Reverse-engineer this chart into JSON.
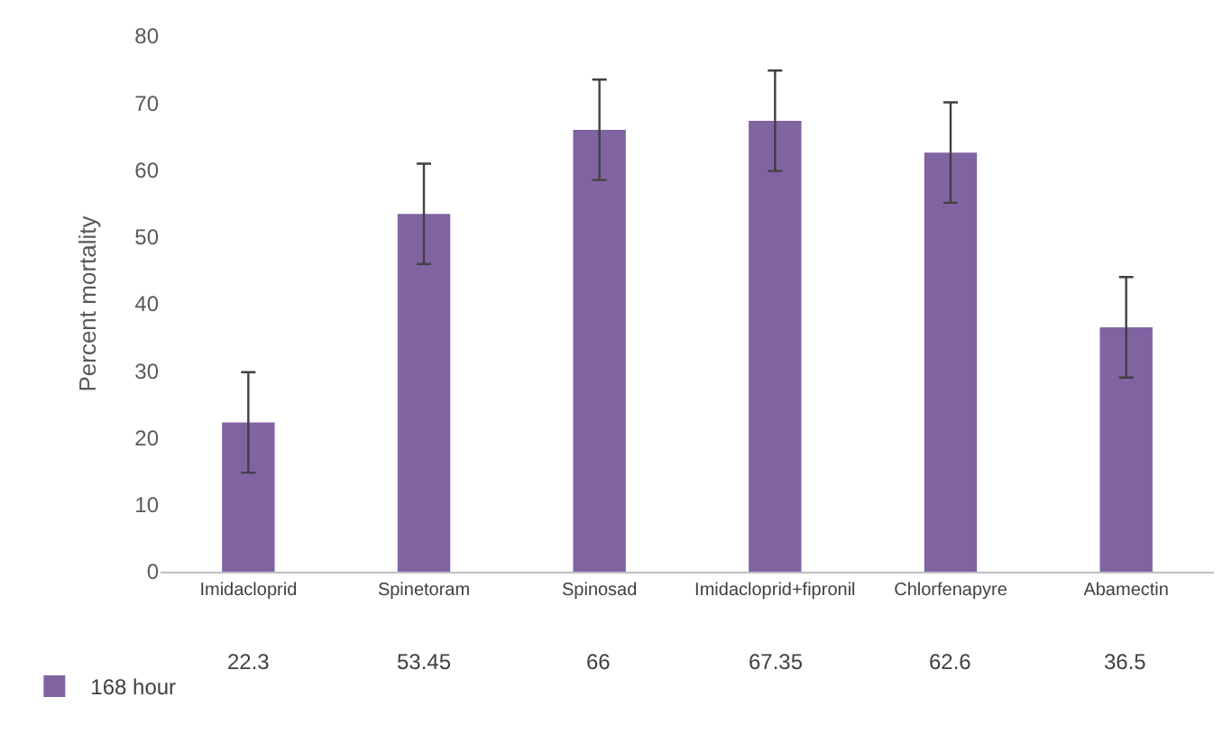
{
  "chart_data": {
    "type": "bar",
    "ylabel": "Percent mortality",
    "categories": [
      "Imidacloprid",
      "Spinetoram",
      "Spinosad",
      "Imidacloprid+fipronil",
      "Chlorfenapyre",
      "Abamectin"
    ],
    "series": [
      {
        "name": "168 hour",
        "color": "#8064a2",
        "values": [
          22.3,
          53.45,
          66,
          67.35,
          62.6,
          36.5
        ],
        "errors": [
          7.5,
          7.5,
          7.5,
          7.5,
          7.5,
          7.5
        ]
      }
    ],
    "ylim": [
      0,
      80
    ],
    "yticks": [
      0,
      10,
      20,
      30,
      40,
      50,
      60,
      70,
      80
    ],
    "grid": false,
    "data_labels": true,
    "legend": "bottom left"
  }
}
